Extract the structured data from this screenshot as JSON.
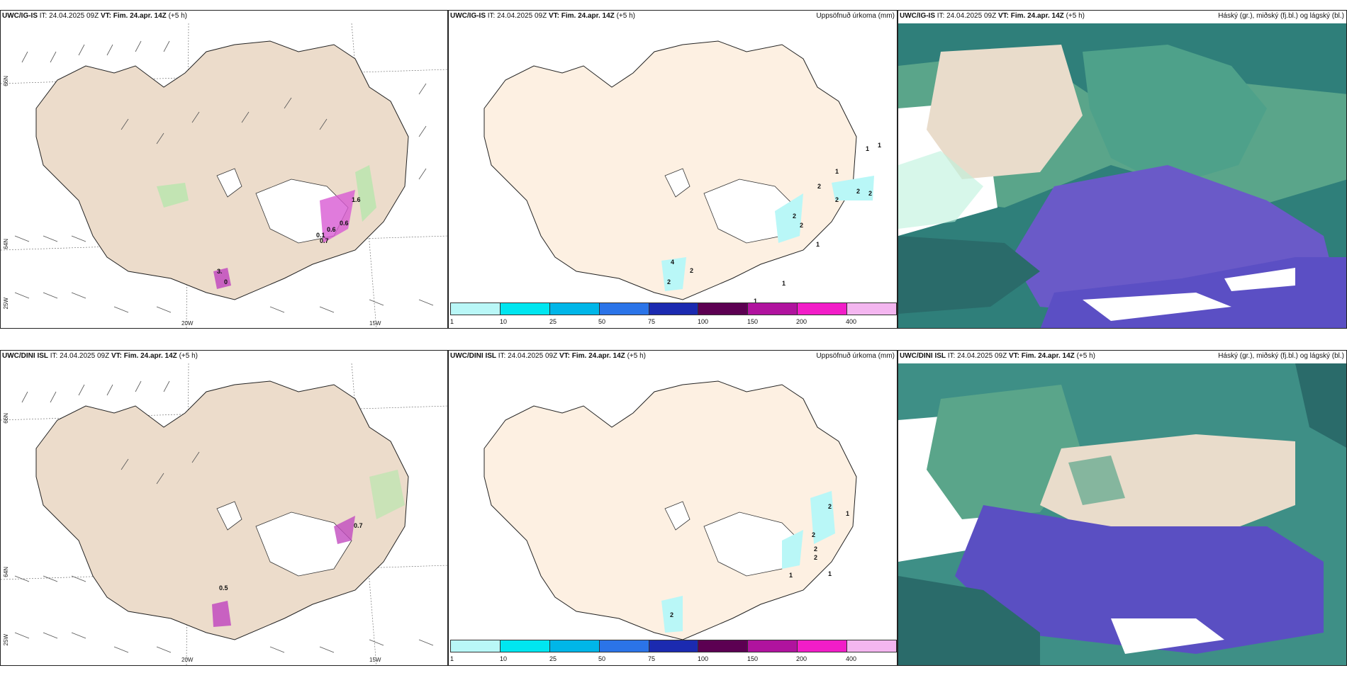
{
  "row1": {
    "p1": {
      "model": "UWC/IG-IS",
      "it_label": "IT:",
      "it": "24.04.2025 09Z",
      "vt_label": "VT:",
      "vt": "Fim. 24.apr. 14Z",
      "lead": "(+5 h)"
    },
    "p2": {
      "model": "UWC/IG-IS",
      "it_label": "IT:",
      "it": "24.04.2025 09Z",
      "vt_label": "VT:",
      "vt": "Fim. 24.apr. 14Z",
      "lead": "(+5 h)",
      "right": "Uppsöfnuð úrkoma (mm)"
    },
    "p3": {
      "model": "UWC/IG-IS",
      "it_label": "IT:",
      "it": "24.04.2025 09Z",
      "vt_label": "VT:",
      "vt": "Fim. 24.apr. 14Z",
      "lead": "(+5 h)",
      "right": "Háský (gr.), miðský (fj.bl.) og lágský (bl.)"
    }
  },
  "row2": {
    "p1": {
      "model": "UWC/DINI ISL",
      "it_label": "IT:",
      "it": "24.04.2025 09Z",
      "vt_label": "VT:",
      "vt": "Fim. 24.apr. 14Z",
      "lead": "(+5 h)"
    },
    "p2": {
      "model": "UWC/DINI ISL",
      "it_label": "IT:",
      "it": "24.04.2025 09Z",
      "vt_label": "VT:",
      "vt": "Fim. 24.apr. 14Z",
      "lead": "(+5 h)",
      "right": "Uppsöfnuð úrkoma (mm)"
    },
    "p3": {
      "model": "UWC/DINI ISL",
      "it_label": "IT:",
      "it": "24.04.2025 09Z",
      "vt_label": "VT:",
      "vt": "Fim. 24.apr. 14Z",
      "lead": "(+5 h)",
      "right": "Háský (gr.), miðský (fj.bl.) og lágský (bl.)"
    }
  },
  "axes": {
    "lat66": "66N",
    "lat64": "64N",
    "lon25": "25W",
    "lon20": "20W",
    "lon15": "15W"
  },
  "colorbar": {
    "ticks": [
      "1",
      "10",
      "25",
      "50",
      "75",
      "100",
      "150",
      "200",
      "400"
    ],
    "colors": [
      "#b9f7f7",
      "#00e6f0",
      "#00b6e8",
      "#2b74e8",
      "#1b2ab0",
      "#5c0052",
      "#b0139e",
      "#f21dc8",
      "#f4b6f0"
    ]
  },
  "precip_values": {
    "ig": [
      "1",
      "1",
      "1",
      "2",
      "2",
      "2",
      "2",
      "2",
      "2",
      "1",
      "4",
      "2",
      "2",
      "1",
      "1"
    ],
    "dini": [
      "2",
      "1",
      "2",
      "2",
      "2",
      "1",
      "1",
      "2"
    ]
  },
  "wind_values": {
    "ig": [
      "1.6",
      "0.7",
      "0.6",
      "0.1",
      "0.6",
      "3.",
      "0"
    ],
    "dini": [
      "0.5",
      "0.7"
    ]
  }
}
